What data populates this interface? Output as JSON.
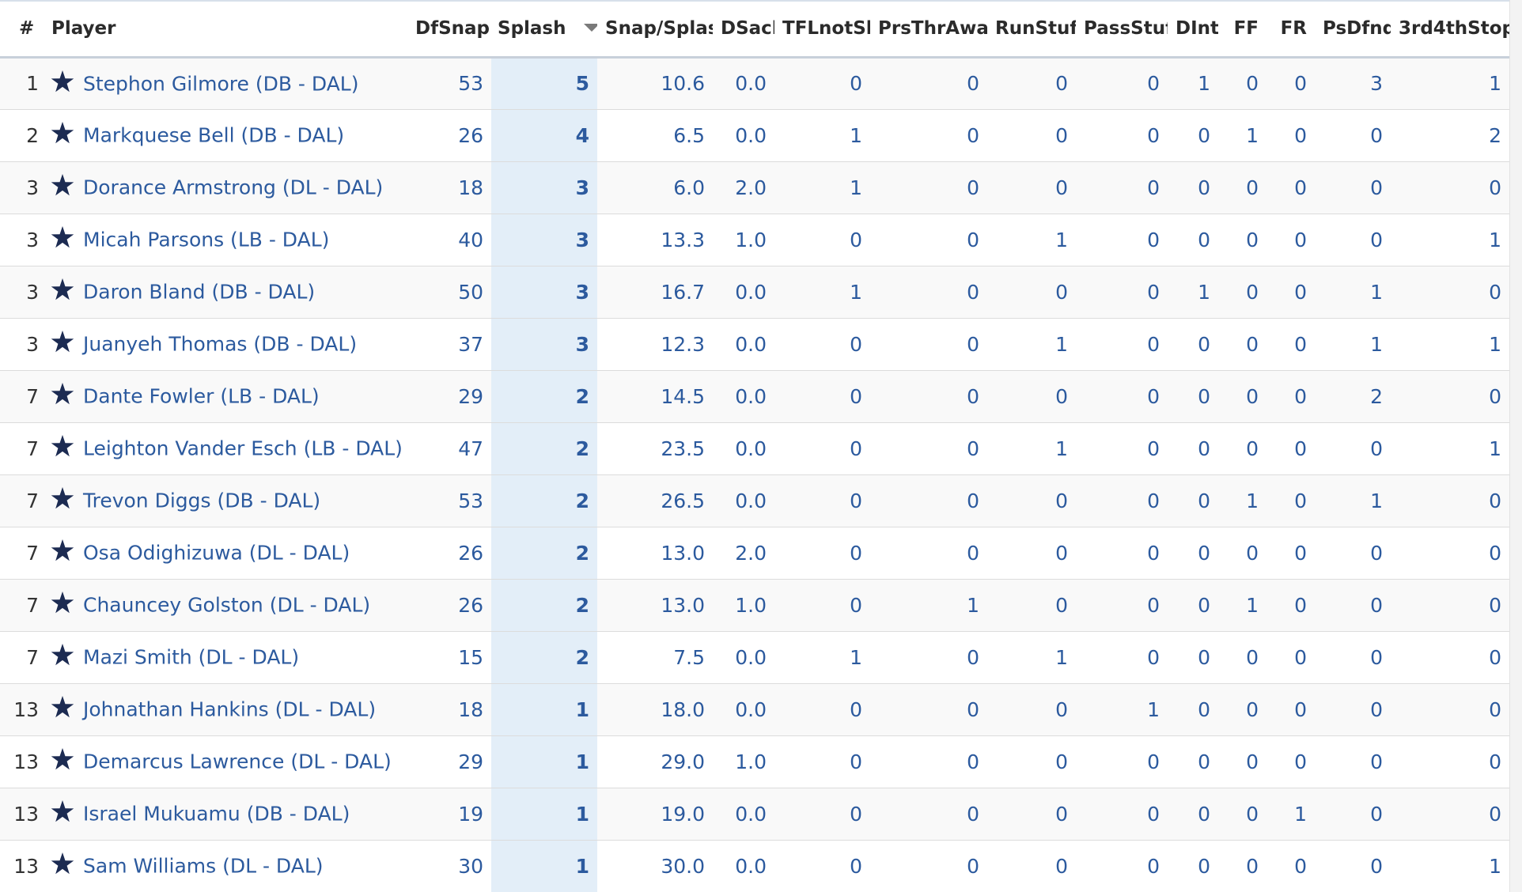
{
  "table": {
    "columns": [
      {
        "key": "rank",
        "label": "#"
      },
      {
        "key": "player",
        "label": "Player"
      },
      {
        "key": "dfsnap",
        "label": "DfSnap"
      },
      {
        "key": "splash",
        "label": "Splash"
      },
      {
        "key": "snap_splash",
        "label": "Snap/Splash"
      },
      {
        "key": "dsack",
        "label": "DSack"
      },
      {
        "key": "tflnotsk",
        "label": "TFLnotSk"
      },
      {
        "key": "prsthraway",
        "label": "PrsThrAway"
      },
      {
        "key": "runstuff",
        "label": "RunStuff"
      },
      {
        "key": "passstuff",
        "label": "PassStuff"
      },
      {
        "key": "dint",
        "label": "DInt"
      },
      {
        "key": "ff",
        "label": "FF"
      },
      {
        "key": "fr",
        "label": "FR"
      },
      {
        "key": "psdfnd",
        "label": "PsDfnd"
      },
      {
        "key": "stop34",
        "label": "3rd4thStop"
      }
    ],
    "sorted_by": "Splash",
    "sort_direction": "descending",
    "rows": [
      {
        "rank": "1",
        "player": "Stephon Gilmore (DB - DAL)",
        "dfsnap": "53",
        "splash": "5",
        "snap_splash": "10.6",
        "dsack": "0.0",
        "tflnotsk": "0",
        "prsthraway": "0",
        "runstuff": "0",
        "passstuff": "0",
        "dint": "1",
        "ff": "0",
        "fr": "0",
        "psdfnd": "3",
        "stop34": "1"
      },
      {
        "rank": "2",
        "player": "Markquese Bell (DB - DAL)",
        "dfsnap": "26",
        "splash": "4",
        "snap_splash": "6.5",
        "dsack": "0.0",
        "tflnotsk": "1",
        "prsthraway": "0",
        "runstuff": "0",
        "passstuff": "0",
        "dint": "0",
        "ff": "1",
        "fr": "0",
        "psdfnd": "0",
        "stop34": "2"
      },
      {
        "rank": "3",
        "player": "Dorance Armstrong (DL - DAL)",
        "dfsnap": "18",
        "splash": "3",
        "snap_splash": "6.0",
        "dsack": "2.0",
        "tflnotsk": "1",
        "prsthraway": "0",
        "runstuff": "0",
        "passstuff": "0",
        "dint": "0",
        "ff": "0",
        "fr": "0",
        "psdfnd": "0",
        "stop34": "0"
      },
      {
        "rank": "3",
        "player": "Micah Parsons (LB - DAL)",
        "dfsnap": "40",
        "splash": "3",
        "snap_splash": "13.3",
        "dsack": "1.0",
        "tflnotsk": "0",
        "prsthraway": "0",
        "runstuff": "1",
        "passstuff": "0",
        "dint": "0",
        "ff": "0",
        "fr": "0",
        "psdfnd": "0",
        "stop34": "1"
      },
      {
        "rank": "3",
        "player": "Daron Bland (DB - DAL)",
        "dfsnap": "50",
        "splash": "3",
        "snap_splash": "16.7",
        "dsack": "0.0",
        "tflnotsk": "1",
        "prsthraway": "0",
        "runstuff": "0",
        "passstuff": "0",
        "dint": "1",
        "ff": "0",
        "fr": "0",
        "psdfnd": "1",
        "stop34": "0"
      },
      {
        "rank": "3",
        "player": "Juanyeh Thomas (DB - DAL)",
        "dfsnap": "37",
        "splash": "3",
        "snap_splash": "12.3",
        "dsack": "0.0",
        "tflnotsk": "0",
        "prsthraway": "0",
        "runstuff": "1",
        "passstuff": "0",
        "dint": "0",
        "ff": "0",
        "fr": "0",
        "psdfnd": "1",
        "stop34": "1"
      },
      {
        "rank": "7",
        "player": "Dante Fowler (LB - DAL)",
        "dfsnap": "29",
        "splash": "2",
        "snap_splash": "14.5",
        "dsack": "0.0",
        "tflnotsk": "0",
        "prsthraway": "0",
        "runstuff": "0",
        "passstuff": "0",
        "dint": "0",
        "ff": "0",
        "fr": "0",
        "psdfnd": "2",
        "stop34": "0"
      },
      {
        "rank": "7",
        "player": "Leighton Vander Esch (LB - DAL)",
        "dfsnap": "47",
        "splash": "2",
        "snap_splash": "23.5",
        "dsack": "0.0",
        "tflnotsk": "0",
        "prsthraway": "0",
        "runstuff": "1",
        "passstuff": "0",
        "dint": "0",
        "ff": "0",
        "fr": "0",
        "psdfnd": "0",
        "stop34": "1"
      },
      {
        "rank": "7",
        "player": "Trevon Diggs (DB - DAL)",
        "dfsnap": "53",
        "splash": "2",
        "snap_splash": "26.5",
        "dsack": "0.0",
        "tflnotsk": "0",
        "prsthraway": "0",
        "runstuff": "0",
        "passstuff": "0",
        "dint": "0",
        "ff": "1",
        "fr": "0",
        "psdfnd": "1",
        "stop34": "0"
      },
      {
        "rank": "7",
        "player": "Osa Odighizuwa (DL - DAL)",
        "dfsnap": "26",
        "splash": "2",
        "snap_splash": "13.0",
        "dsack": "2.0",
        "tflnotsk": "0",
        "prsthraway": "0",
        "runstuff": "0",
        "passstuff": "0",
        "dint": "0",
        "ff": "0",
        "fr": "0",
        "psdfnd": "0",
        "stop34": "0"
      },
      {
        "rank": "7",
        "player": "Chauncey Golston (DL - DAL)",
        "dfsnap": "26",
        "splash": "2",
        "snap_splash": "13.0",
        "dsack": "1.0",
        "tflnotsk": "0",
        "prsthraway": "1",
        "runstuff": "0",
        "passstuff": "0",
        "dint": "0",
        "ff": "1",
        "fr": "0",
        "psdfnd": "0",
        "stop34": "0"
      },
      {
        "rank": "7",
        "player": "Mazi Smith (DL - DAL)",
        "dfsnap": "15",
        "splash": "2",
        "snap_splash": "7.5",
        "dsack": "0.0",
        "tflnotsk": "1",
        "prsthraway": "0",
        "runstuff": "1",
        "passstuff": "0",
        "dint": "0",
        "ff": "0",
        "fr": "0",
        "psdfnd": "0",
        "stop34": "0"
      },
      {
        "rank": "13",
        "player": "Johnathan Hankins (DL - DAL)",
        "dfsnap": "18",
        "splash": "1",
        "snap_splash": "18.0",
        "dsack": "0.0",
        "tflnotsk": "0",
        "prsthraway": "0",
        "runstuff": "0",
        "passstuff": "1",
        "dint": "0",
        "ff": "0",
        "fr": "0",
        "psdfnd": "0",
        "stop34": "0"
      },
      {
        "rank": "13",
        "player": "Demarcus Lawrence (DL - DAL)",
        "dfsnap": "29",
        "splash": "1",
        "snap_splash": "29.0",
        "dsack": "1.0",
        "tflnotsk": "0",
        "prsthraway": "0",
        "runstuff": "0",
        "passstuff": "0",
        "dint": "0",
        "ff": "0",
        "fr": "0",
        "psdfnd": "0",
        "stop34": "0"
      },
      {
        "rank": "13",
        "player": "Israel Mukuamu (DB - DAL)",
        "dfsnap": "19",
        "splash": "1",
        "snap_splash": "19.0",
        "dsack": "0.0",
        "tflnotsk": "0",
        "prsthraway": "0",
        "runstuff": "0",
        "passstuff": "0",
        "dint": "0",
        "ff": "0",
        "fr": "1",
        "psdfnd": "0",
        "stop34": "0"
      },
      {
        "rank": "13",
        "player": "Sam Williams (DL - DAL)",
        "dfsnap": "30",
        "splash": "1",
        "snap_splash": "30.0",
        "dsack": "0.0",
        "tflnotsk": "0",
        "prsthraway": "0",
        "runstuff": "0",
        "passstuff": "0",
        "dint": "0",
        "ff": "0",
        "fr": "0",
        "psdfnd": "0",
        "stop34": "1"
      }
    ]
  },
  "icons": {
    "player_row_icon": "star-icon",
    "sort_indicator": "sort-caret-down-icon"
  },
  "colors": {
    "link": "#2c5a9e",
    "sorted_column_bg": "#e3eef8",
    "star": "#1c2b52"
  }
}
